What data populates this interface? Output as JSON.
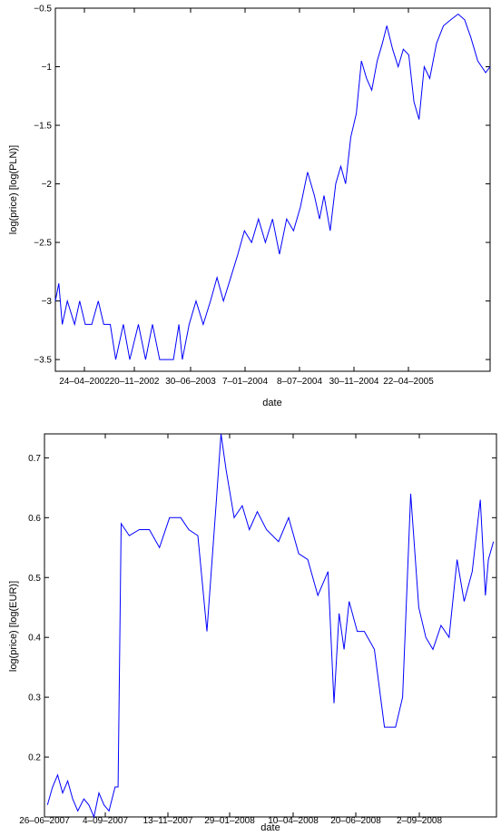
{
  "chart_data": [
    {
      "type": "line",
      "title": "",
      "xlabel": "date",
      "ylabel": "log(price) [log(PLN)]",
      "ylim": [
        -3.6,
        -0.5
      ],
      "grid": false,
      "line_color": "#0000ff",
      "x_tick_labels": [
        "24–04–2002",
        "20–11–2002",
        "30–06–2003",
        "7–01–2004",
        "8–07–2004",
        "30–11–2004",
        "22–04–2005"
      ],
      "y_tick_labels": [
        "−0.5",
        "−1",
        "−1.5",
        "−2",
        "−2.5",
        "−3",
        "−3.5"
      ],
      "y_tick_values": [
        -0.5,
        -1,
        -1.5,
        -2,
        -2.5,
        -3,
        -3.5
      ],
      "series": [
        {
          "x": [
            "2001-11-15",
            "2001-11-25",
            "2001-12-05",
            "2001-12-20",
            "2002-01-10",
            "2002-01-25",
            "2002-02-10",
            "2002-03-01",
            "2002-03-20",
            "2002-04-05",
            "2002-04-24",
            "2002-05-10",
            "2002-06-01",
            "2002-06-20",
            "2002-07-15",
            "2002-08-05",
            "2002-08-25",
            "2002-09-15",
            "2002-10-05",
            "2002-10-25",
            "2002-11-10",
            "2002-11-20",
            "2002-12-10",
            "2002-12-30",
            "2003-01-20",
            "2003-02-10",
            "2003-03-01",
            "2003-03-20",
            "2003-04-10",
            "2003-05-01",
            "2003-05-20",
            "2003-06-10",
            "2003-06-30",
            "2003-07-20",
            "2003-08-10",
            "2003-08-30",
            "2003-09-20",
            "2003-10-10",
            "2003-10-30",
            "2003-11-20",
            "2003-12-10",
            "2003-12-25",
            "2004-01-07",
            "2004-01-25",
            "2004-02-10",
            "2004-02-25",
            "2004-03-10",
            "2004-03-25",
            "2004-04-10",
            "2004-04-25",
            "2004-05-10",
            "2004-05-25",
            "2004-06-10",
            "2004-06-25",
            "2004-07-08",
            "2004-07-25",
            "2004-08-10",
            "2004-08-25",
            "2004-09-10",
            "2004-09-25",
            "2004-10-10",
            "2004-10-25",
            "2004-11-10",
            "2004-11-30",
            "2004-12-20",
            "2005-01-10",
            "2005-02-01",
            "2005-02-20",
            "2005-03-10",
            "2005-03-30",
            "2005-04-22",
            "2005-05-05"
          ],
          "values": [
            -3.0,
            -2.85,
            -3.2,
            -3.0,
            -3.2,
            -3.0,
            -3.2,
            -3.2,
            -3.0,
            -3.2,
            -3.2,
            -3.5,
            -3.2,
            -3.5,
            -3.2,
            -3.5,
            -3.2,
            -3.5,
            -3.5,
            -3.5,
            -3.2,
            -3.5,
            -3.2,
            -3.0,
            -3.2,
            -3.0,
            -2.8,
            -3.0,
            -2.8,
            -2.6,
            -2.4,
            -2.5,
            -2.3,
            -2.5,
            -2.3,
            -2.6,
            -2.3,
            -2.4,
            -2.2,
            -1.9,
            -2.1,
            -2.3,
            -2.1,
            -2.4,
            -2.0,
            -1.85,
            -2.0,
            -1.6,
            -1.4,
            -0.95,
            -1.1,
            -1.2,
            -0.95,
            -0.8,
            -0.65,
            -0.85,
            -1.0,
            -0.85,
            -0.9,
            -1.3,
            -1.45,
            -1.0,
            -1.1,
            -0.8,
            -0.65,
            -0.6,
            -0.55,
            -0.6,
            -0.75,
            -0.95,
            -1.05,
            -1.0
          ]
        }
      ]
    },
    {
      "type": "line",
      "title": "",
      "xlabel": "date",
      "ylabel": "log(price) [log(EUR)]",
      "ylim": [
        0.1,
        0.74
      ],
      "grid": false,
      "line_color": "#0000ff",
      "x_tick_labels": [
        "26–06–2007",
        "4–09–2007",
        "13–11–2007",
        "29–01–2008",
        "10–04–2008",
        "20–06–2008",
        "2–09–2008"
      ],
      "y_tick_labels": [
        "0.7",
        "0.6",
        "0.5",
        "0.4",
        "0.3",
        "0.2"
      ],
      "y_tick_values": [
        0.7,
        0.6,
        0.5,
        0.4,
        0.3,
        0.2
      ],
      "series": [
        {
          "x": [
            "2007-06-26",
            "2007-07-01",
            "2007-07-06",
            "2007-07-11",
            "2007-07-16",
            "2007-07-21",
            "2007-07-26",
            "2007-08-01",
            "2007-08-06",
            "2007-08-11",
            "2007-08-16",
            "2007-08-21",
            "2007-08-26",
            "2007-09-01",
            "2007-09-04",
            "2007-09-07",
            "2007-09-15",
            "2007-09-25",
            "2007-10-05",
            "2007-10-15",
            "2007-10-25",
            "2007-11-05",
            "2007-11-13",
            "2007-11-22",
            "2007-12-01",
            "2007-12-10",
            "2007-12-15",
            "2007-12-20",
            "2007-12-28",
            "2008-01-05",
            "2008-01-12",
            "2008-01-20",
            "2008-01-29",
            "2008-02-10",
            "2008-02-20",
            "2008-03-01",
            "2008-03-10",
            "2008-03-20",
            "2008-03-30",
            "2008-04-05",
            "2008-04-10",
            "2008-04-15",
            "2008-04-20",
            "2008-04-28",
            "2008-05-05",
            "2008-05-15",
            "2008-05-25",
            "2008-06-05",
            "2008-06-12",
            "2008-06-20",
            "2008-06-28",
            "2008-07-05",
            "2008-07-12",
            "2008-07-20",
            "2008-07-28",
            "2008-08-05",
            "2008-08-12",
            "2008-08-20",
            "2008-08-28",
            "2008-09-02",
            "2008-09-05",
            "2008-09-10"
          ],
          "values": [
            0.12,
            0.15,
            0.17,
            0.14,
            0.16,
            0.13,
            0.11,
            0.13,
            0.12,
            0.1,
            0.14,
            0.12,
            0.11,
            0.15,
            0.15,
            0.59,
            0.57,
            0.58,
            0.58,
            0.55,
            0.6,
            0.6,
            0.58,
            0.57,
            0.41,
            0.62,
            0.74,
            0.68,
            0.6,
            0.62,
            0.58,
            0.61,
            0.58,
            0.56,
            0.6,
            0.54,
            0.53,
            0.47,
            0.51,
            0.29,
            0.44,
            0.38,
            0.46,
            0.41,
            0.41,
            0.38,
            0.25,
            0.25,
            0.3,
            0.64,
            0.45,
            0.4,
            0.38,
            0.42,
            0.4,
            0.53,
            0.46,
            0.51,
            0.63,
            0.47,
            0.53,
            0.56
          ]
        }
      ]
    }
  ]
}
